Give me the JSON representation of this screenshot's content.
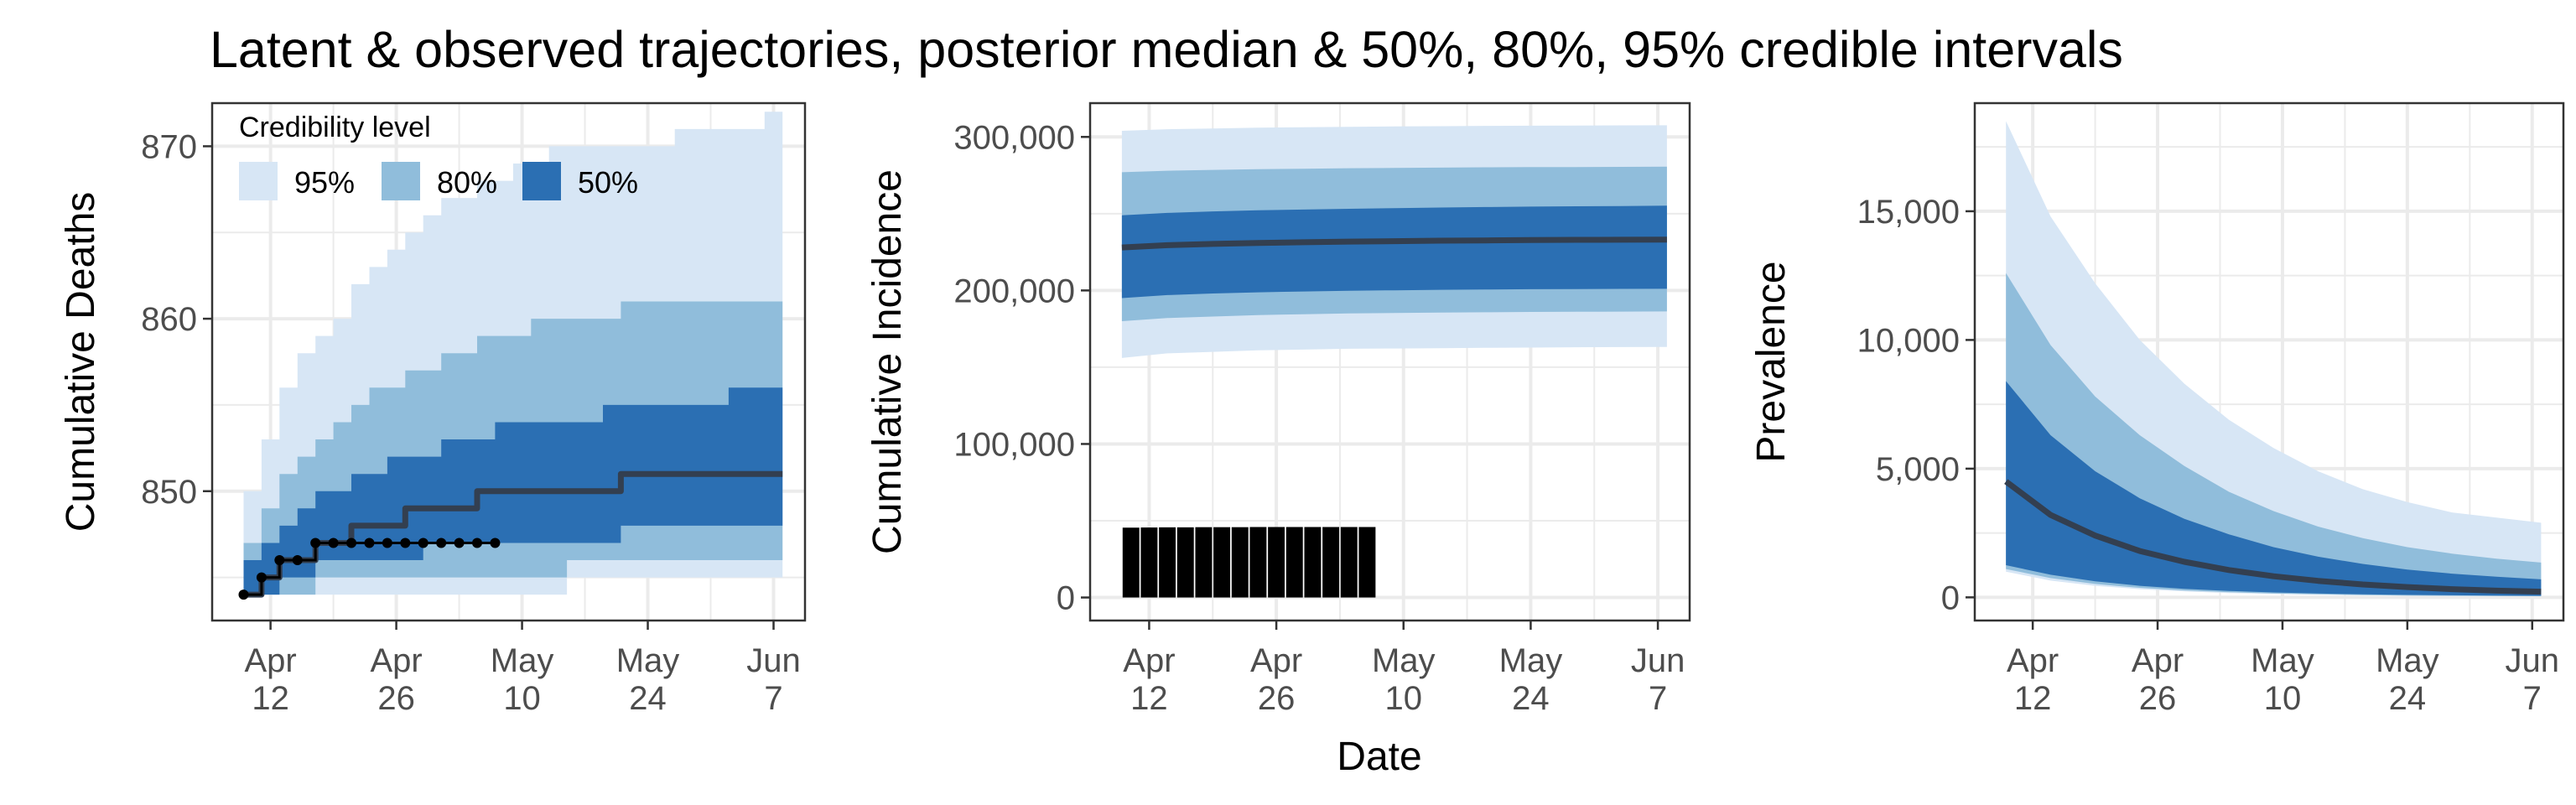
{
  "title": "Latent & observed trajectories, posterior median & 50%, 80%, 95% credible intervals",
  "x_axis_label": "Date",
  "legend": {
    "title": "Credibility level",
    "entries": [
      {
        "label": "95%",
        "color": "#d7e6f5"
      },
      {
        "label": "80%",
        "color": "#90bddb"
      },
      {
        "label": "50%",
        "color": "#2b6fb3"
      }
    ]
  },
  "colors": {
    "median": "#333f50",
    "observed": "#000000",
    "grid": "#ebebeb",
    "panel_border": "#333333",
    "tick_text": "#4d4d4d"
  },
  "chart_data": [
    {
      "type": "area",
      "name": "deaths",
      "ylabel": "Cumulative Deaths",
      "xlim": [
        -3.5,
        62.5
      ],
      "ylim": [
        842.5,
        872.5
      ],
      "x_ticks": [
        {
          "value": 3,
          "label": [
            "Apr",
            "12"
          ]
        },
        {
          "value": 17,
          "label": [
            "Apr",
            "26"
          ]
        },
        {
          "value": 31,
          "label": [
            "May",
            "10"
          ]
        },
        {
          "value": 45,
          "label": [
            "May",
            "24"
          ]
        },
        {
          "value": 59,
          "label": [
            "Jun",
            "7"
          ]
        }
      ],
      "y_ticks": [
        {
          "value": 850,
          "label": "850"
        },
        {
          "value": 860,
          "label": "860"
        },
        {
          "value": 870,
          "label": "870"
        }
      ],
      "step": true,
      "x": [
        0,
        2,
        4,
        6,
        8,
        10,
        12,
        14,
        16,
        18,
        20,
        22,
        24,
        26,
        28,
        30,
        32,
        34,
        36,
        38,
        40,
        42,
        44,
        46,
        48,
        50,
        52,
        54,
        56,
        58,
        60
      ],
      "bands": {
        "95": {
          "lower": [
            844,
            844,
            844,
            844,
            844,
            844,
            844,
            844,
            844,
            844,
            844,
            844,
            844,
            844,
            844,
            844,
            844,
            844,
            845,
            845,
            845,
            845,
            845,
            845,
            845,
            845,
            845,
            845,
            845,
            845,
            845
          ],
          "upper": [
            850,
            853,
            856,
            858,
            859,
            860,
            862,
            863,
            864,
            865,
            866,
            867,
            867,
            868,
            868,
            869,
            869,
            870,
            870,
            870,
            870,
            870,
            870,
            870,
            871,
            871,
            871,
            871,
            871,
            872,
            872
          ]
        },
        "80": {
          "lower": [
            844,
            844,
            844,
            844,
            845,
            845,
            845,
            845,
            845,
            845,
            845,
            845,
            845,
            845,
            845,
            845,
            845,
            845,
            846,
            846,
            846,
            846,
            846,
            846,
            846,
            846,
            846,
            846,
            846,
            846,
            846
          ],
          "upper": [
            847,
            849,
            851,
            852,
            853,
            854,
            855,
            856,
            856,
            857,
            857,
            858,
            858,
            859,
            859,
            859,
            860,
            860,
            860,
            860,
            860,
            861,
            861,
            861,
            861,
            861,
            861,
            861,
            861,
            861,
            861
          ]
        },
        "50": {
          "lower": [
            844,
            844,
            845,
            845,
            846,
            846,
            846,
            846,
            846,
            846,
            847,
            847,
            847,
            847,
            847,
            847,
            847,
            847,
            847,
            847,
            847,
            848,
            848,
            848,
            848,
            848,
            848,
            848,
            848,
            848,
            848
          ],
          "upper": [
            846,
            847,
            848,
            849,
            850,
            850,
            851,
            851,
            852,
            852,
            852,
            853,
            853,
            853,
            854,
            854,
            854,
            854,
            854,
            854,
            855,
            855,
            855,
            855,
            855,
            855,
            855,
            856,
            856,
            856,
            856
          ]
        }
      },
      "median": [
        844,
        845,
        846,
        846,
        847,
        847,
        848,
        848,
        848,
        849,
        849,
        849,
        849,
        850,
        850,
        850,
        850,
        850,
        850,
        850,
        850,
        851,
        851,
        851,
        851,
        851,
        851,
        851,
        851,
        851,
        851
      ],
      "observed": {
        "x": [
          0,
          2,
          4,
          6,
          8,
          10,
          12,
          14,
          16,
          18,
          20,
          22,
          24,
          26,
          28
        ],
        "y": [
          844,
          845,
          846,
          846,
          847,
          847,
          847,
          847,
          847,
          847,
          847,
          847,
          847,
          847,
          847
        ]
      }
    },
    {
      "type": "area",
      "name": "incidence",
      "ylabel": "Cumulative Incidence",
      "xlim": [
        -3.5,
        62.5
      ],
      "ylim": [
        -15000,
        322000
      ],
      "x_ticks": [
        {
          "value": 3,
          "label": [
            "Apr",
            "12"
          ]
        },
        {
          "value": 17,
          "label": [
            "Apr",
            "26"
          ]
        },
        {
          "value": 31,
          "label": [
            "May",
            "10"
          ]
        },
        {
          "value": 45,
          "label": [
            "May",
            "24"
          ]
        },
        {
          "value": 59,
          "label": [
            "Jun",
            "7"
          ]
        }
      ],
      "y_ticks": [
        {
          "value": 0,
          "label": "0"
        },
        {
          "value": 100000,
          "label": "100,000"
        },
        {
          "value": 200000,
          "label": "200,000"
        },
        {
          "value": 300000,
          "label": "300,000"
        }
      ],
      "step": false,
      "x": [
        0,
        5,
        10,
        15,
        20,
        25,
        30,
        35,
        40,
        45,
        50,
        55,
        60
      ],
      "bands": {
        "95": {
          "lower": [
            156000,
            159000,
            160000,
            161000,
            161500,
            162000,
            162200,
            162400,
            162600,
            162800,
            163000,
            163100,
            163200
          ],
          "upper": [
            304000,
            305000,
            305500,
            306000,
            306300,
            306600,
            306800,
            307000,
            307200,
            307300,
            307400,
            307500,
            307600
          ]
        },
        "80": {
          "lower": [
            180000,
            182000,
            183000,
            184000,
            184500,
            185000,
            185300,
            185600,
            185800,
            186000,
            186100,
            186200,
            186300
          ],
          "upper": [
            277000,
            278000,
            278500,
            279000,
            279300,
            279600,
            279800,
            280000,
            280200,
            280300,
            280400,
            280500,
            280600
          ]
        },
        "50": {
          "lower": [
            195000,
            197000,
            198000,
            198800,
            199300,
            199800,
            200100,
            200400,
            200600,
            200800,
            200900,
            201000,
            201100
          ],
          "upper": [
            249000,
            250500,
            251500,
            252200,
            252700,
            253200,
            253600,
            254000,
            254300,
            254600,
            254800,
            255000,
            255200
          ]
        }
      },
      "median": [
        228000,
        229500,
        230300,
        230900,
        231400,
        231800,
        232100,
        232400,
        232600,
        232800,
        232950,
        233050,
        233150
      ],
      "bars": {
        "x": [
          1,
          3,
          5,
          7,
          9,
          11,
          13,
          15,
          17,
          19,
          21,
          23,
          25,
          27
        ],
        "y": [
          45500,
          45600,
          45700,
          45700,
          45800,
          45800,
          45800,
          45900,
          45900,
          45900,
          45900,
          45900,
          45900,
          45900
        ]
      }
    },
    {
      "type": "area",
      "name": "prevalence",
      "ylabel": "Prevalence",
      "xlim": [
        -3.5,
        62.5
      ],
      "ylim": [
        -900,
        19200
      ],
      "x_ticks": [
        {
          "value": 3,
          "label": [
            "Apr",
            "12"
          ]
        },
        {
          "value": 17,
          "label": [
            "Apr",
            "26"
          ]
        },
        {
          "value": 31,
          "label": [
            "May",
            "10"
          ]
        },
        {
          "value": 45,
          "label": [
            "May",
            "24"
          ]
        },
        {
          "value": 59,
          "label": [
            "Jun",
            "7"
          ]
        }
      ],
      "y_ticks": [
        {
          "value": 0,
          "label": "0"
        },
        {
          "value": 5000,
          "label": "5,000"
        },
        {
          "value": 10000,
          "label": "10,000"
        },
        {
          "value": 15000,
          "label": "15,000"
        }
      ],
      "step": false,
      "x": [
        0,
        5,
        10,
        15,
        20,
        25,
        30,
        35,
        40,
        45,
        50,
        55,
        60
      ],
      "bands": {
        "95": {
          "lower": [
            1000,
            650,
            450,
            320,
            230,
            170,
            130,
            100,
            80,
            65,
            55,
            48,
            42
          ],
          "upper": [
            18500,
            14800,
            12200,
            10000,
            8300,
            6900,
            5800,
            4900,
            4200,
            3700,
            3300,
            3100,
            2900
          ]
        },
        "80": {
          "lower": [
            1100,
            750,
            520,
            370,
            270,
            200,
            150,
            115,
            90,
            72,
            60,
            52,
            46
          ],
          "upper": [
            12600,
            9800,
            7800,
            6300,
            5100,
            4100,
            3350,
            2750,
            2300,
            1950,
            1700,
            1500,
            1350
          ]
        },
        "50": {
          "lower": [
            1250,
            880,
            620,
            450,
            330,
            250,
            190,
            148,
            118,
            96,
            80,
            68,
            60
          ],
          "upper": [
            8400,
            6300,
            4900,
            3850,
            3050,
            2450,
            1950,
            1580,
            1300,
            1080,
            920,
            800,
            700
          ]
        }
      },
      "median": [
        4500,
        3200,
        2400,
        1800,
        1380,
        1060,
        820,
        640,
        500,
        400,
        320,
        260,
        220
      ]
    }
  ]
}
